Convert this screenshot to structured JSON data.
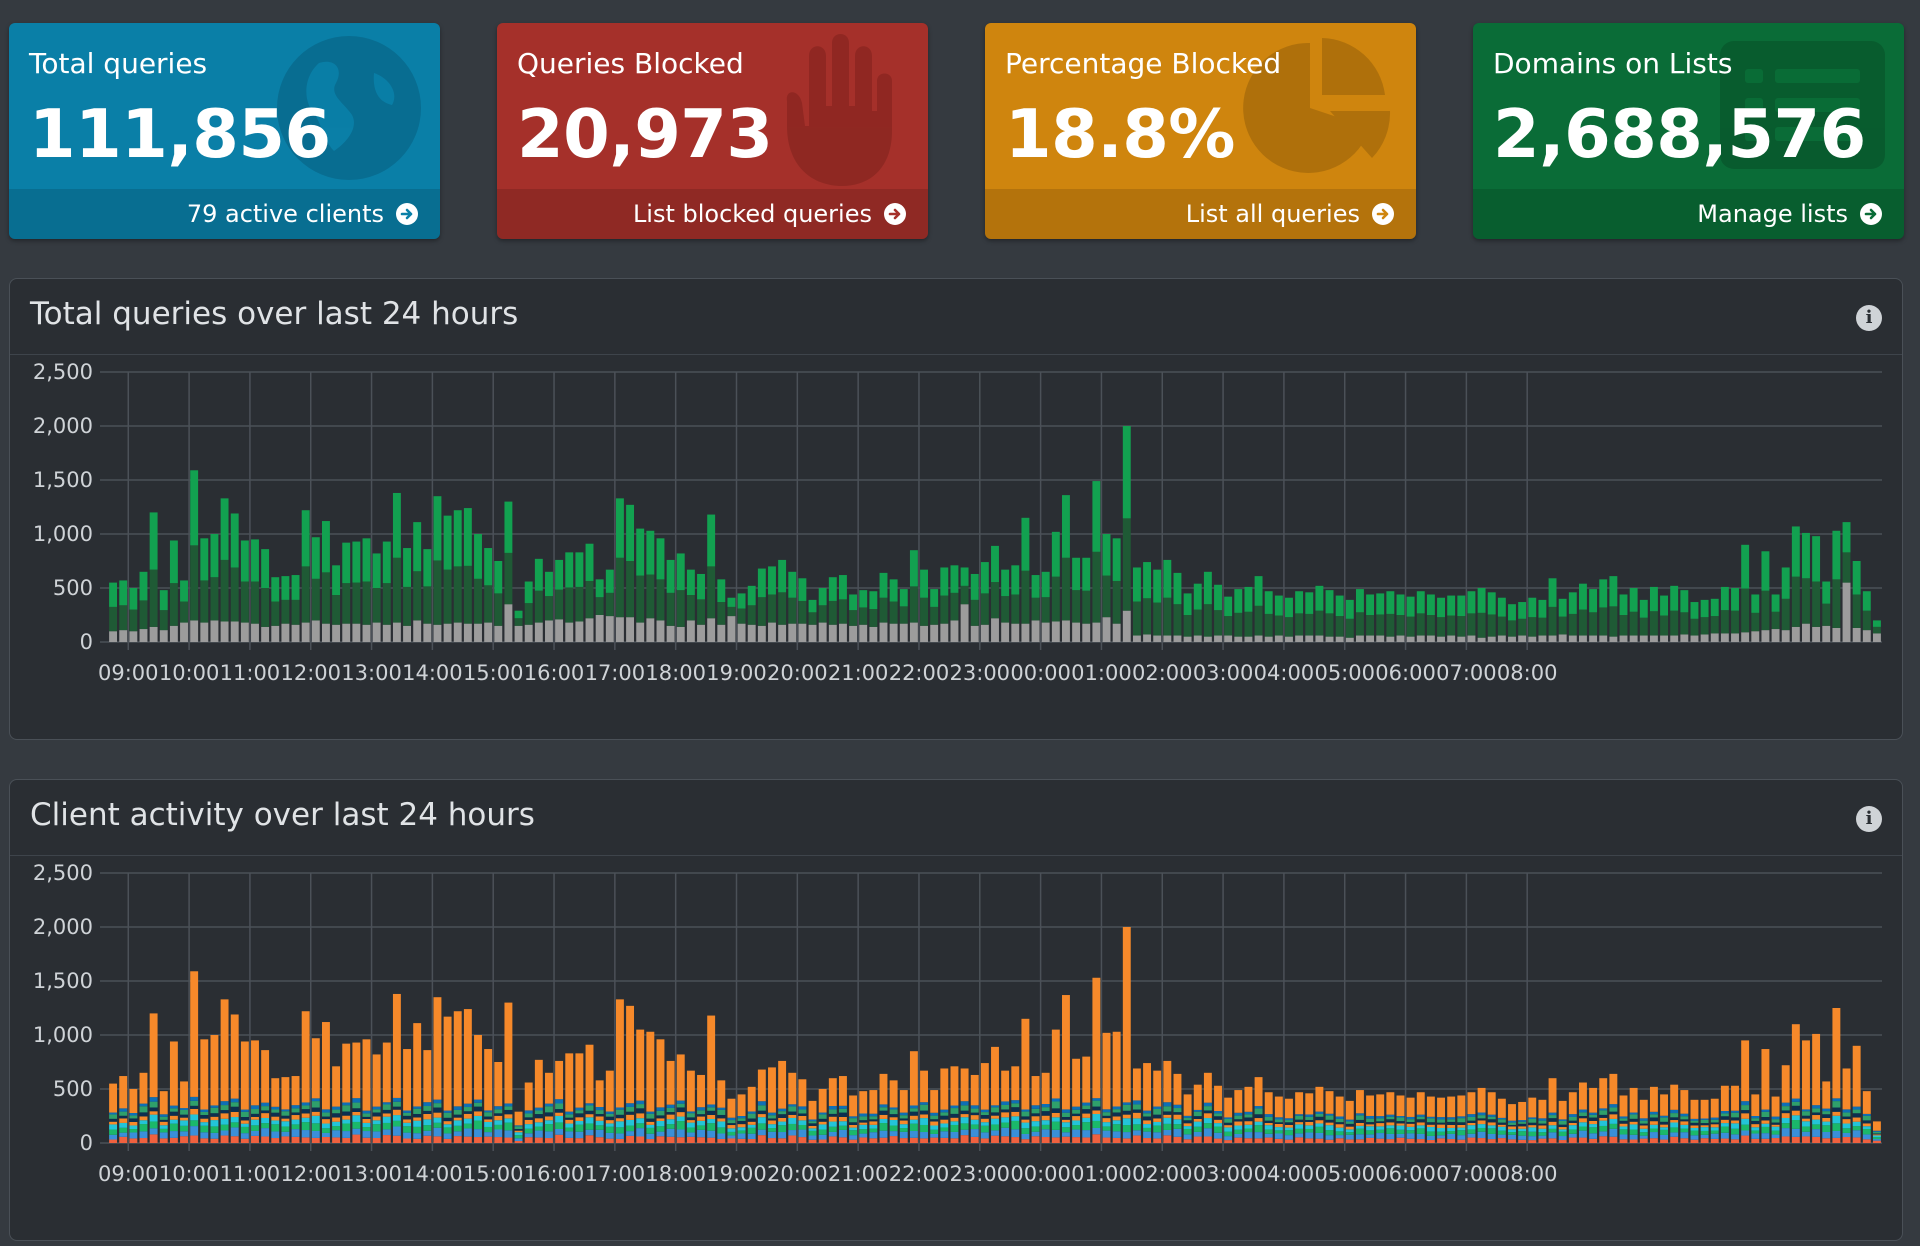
{
  "stats": [
    {
      "label": "Total queries",
      "value": "111,856",
      "footer": "79 active clients",
      "color": "#0a7fa7",
      "icon": "globe-icon"
    },
    {
      "label": "Queries Blocked",
      "value": "20,973",
      "footer": "List blocked queries",
      "color": "#a5302a",
      "icon": "hand-icon"
    },
    {
      "label": "Percentage Blocked",
      "value": "18.8%",
      "footer": "List all queries",
      "color": "#cf850e",
      "icon": "pie-chart-icon"
    },
    {
      "label": "Domains on Lists",
      "value": "2,688,576",
      "footer": "Manage lists",
      "color": "#0a6c37",
      "icon": "list-icon"
    }
  ],
  "panels": {
    "queries": {
      "title": "Total queries over last 24 hours"
    },
    "clients": {
      "title": "Client activity over last 24 hours"
    }
  },
  "colors": {
    "permitted_light": "#12a150",
    "permitted_dark": "#1f5a35",
    "blocked": "#9c9c9c",
    "client_palette": [
      "#f0613f",
      "#3a8fd9",
      "#1bb86a",
      "#23c4d9",
      "#f6892a",
      "#0d2f4f",
      "#2fa06b",
      "#0e6fb5",
      "#12e0a0"
    ]
  },
  "chart_data": [
    {
      "type": "bar",
      "name": "queries",
      "title": "Total queries over last 24 hours",
      "stacked": true,
      "ylim": [
        0,
        2500
      ],
      "yticks": [
        "0",
        "500",
        "1,000",
        "1,500",
        "2,000",
        "2,500"
      ],
      "xticks": [
        "09:00",
        "10:00",
        "11:00",
        "12:00",
        "13:00",
        "14:00",
        "15:00",
        "16:00",
        "17:00",
        "18:00",
        "19:00",
        "20:00",
        "21:00",
        "22:00",
        "23:00",
        "00:00",
        "01:00",
        "02:00",
        "03:00",
        "04:00",
        "05:00",
        "06:00",
        "07:00",
        "08:00"
      ],
      "x_start": "08:40",
      "interval_minutes": 10,
      "grid": true,
      "series": [
        {
          "key": "blocked",
          "values": [
            100,
            110,
            100,
            120,
            140,
            110,
            150,
            180,
            200,
            180,
            200,
            190,
            190,
            180,
            170,
            140,
            150,
            170,
            160,
            180,
            200,
            170,
            160,
            170,
            170,
            160,
            180,
            160,
            180,
            150,
            200,
            170,
            160,
            170,
            180,
            170,
            170,
            180,
            150,
            350,
            150,
            160,
            180,
            200,
            210,
            180,
            190,
            220,
            250,
            240,
            230,
            230,
            180,
            220,
            200,
            150,
            140,
            200,
            160,
            220,
            160,
            240,
            170,
            160,
            150,
            180,
            160,
            170,
            170,
            160,
            180,
            160,
            170,
            150,
            160,
            140,
            180,
            170,
            170,
            180,
            150,
            160,
            170,
            200,
            350,
            150,
            160,
            220,
            180,
            170,
            170,
            200,
            180,
            190,
            200,
            180,
            170,
            180,
            230,
            170,
            290,
            60,
            70,
            60,
            60,
            60,
            50,
            60,
            50,
            60,
            60,
            50,
            50,
            60,
            50,
            60,
            50,
            60,
            60,
            60,
            50,
            50,
            40,
            60,
            60,
            60,
            50,
            60,
            50,
            60,
            60,
            50,
            60,
            50,
            60,
            40,
            50,
            60,
            50,
            60,
            50,
            60,
            60,
            70,
            60,
            60,
            60,
            60,
            50,
            60,
            60,
            60,
            60,
            60,
            60,
            70,
            60,
            70,
            80,
            80,
            80,
            90,
            100,
            110,
            120,
            110,
            140,
            170,
            140,
            150,
            130,
            550,
            130,
            110,
            80
          ]
        },
        {
          "key": "permitted",
          "values": [
            450,
            460,
            400,
            530,
            1060,
            370,
            790,
            390,
            1390,
            780,
            800,
            1140,
            1000,
            760,
            780,
            720,
            450,
            440,
            460,
            1040,
            770,
            950,
            550,
            750,
            760,
            800,
            640,
            770,
            1200,
            720,
            910,
            690,
            1190,
            1000,
            1040,
            1070,
            830,
            690,
            600,
            950,
            140,
            400,
            590,
            450,
            550,
            650,
            640,
            690,
            330,
            430,
            1100,
            1040,
            870,
            810,
            760,
            610,
            680,
            470,
            470,
            960,
            420,
            170,
            280,
            360,
            530,
            520,
            600,
            480,
            420,
            230,
            320,
            440,
            450,
            290,
            320,
            330,
            460,
            410,
            320,
            670,
            520,
            330,
            520,
            510,
            340,
            480,
            580,
            670,
            490,
            540,
            980,
            420,
            470,
            830,
            1160,
            600,
            610,
            1310,
            770,
            790,
            1710,
            630,
            670,
            610,
            700,
            580,
            400,
            480,
            600,
            470,
            360,
            440,
            460,
            550,
            420,
            370,
            360,
            410,
            400,
            460,
            430,
            380,
            350,
            430,
            380,
            390,
            420,
            380,
            370,
            410,
            380,
            360,
            370,
            380,
            410,
            460,
            410,
            350,
            300,
            310,
            360,
            330,
            530,
            330,
            400,
            480,
            430,
            520,
            560,
            380,
            440,
            330,
            450,
            370,
            460,
            410,
            310,
            320,
            320,
            430,
            420,
            810,
            340,
            730,
            320,
            580,
            930,
            840,
            840,
            410,
            900,
            560,
            620,
            360,
            120
          ]
        }
      ]
    },
    {
      "type": "bar",
      "name": "clients",
      "title": "Client activity over last 24 hours",
      "stacked": true,
      "ylim": [
        0,
        2500
      ],
      "yticks": [
        "0",
        "500",
        "1,000",
        "1,500",
        "2,000",
        "2,500"
      ],
      "xticks": [
        "09:00",
        "10:00",
        "11:00",
        "12:00",
        "13:00",
        "14:00",
        "15:00",
        "16:00",
        "17:00",
        "18:00",
        "19:00",
        "20:00",
        "21:00",
        "22:00",
        "23:00",
        "00:00",
        "01:00",
        "02:00",
        "03:00",
        "04:00",
        "05:00",
        "06:00",
        "07:00",
        "08:00"
      ],
      "x_start": "08:40",
      "interval_minutes": 10,
      "grid": true,
      "totals": [
        550,
        620,
        500,
        650,
        1200,
        480,
        940,
        570,
        1590,
        960,
        1000,
        1330,
        1190,
        940,
        950,
        860,
        600,
        610,
        620,
        1220,
        970,
        1120,
        710,
        920,
        930,
        960,
        820,
        930,
        1380,
        870,
        1110,
        860,
        1350,
        1170,
        1220,
        1240,
        1000,
        870,
        750,
        1300,
        290,
        560,
        770,
        650,
        760,
        830,
        830,
        910,
        580,
        670,
        1330,
        1270,
        1050,
        1030,
        960,
        760,
        820,
        670,
        630,
        1180,
        580,
        410,
        450,
        520,
        680,
        700,
        760,
        650,
        590,
        390,
        500,
        600,
        620,
        440,
        480,
        490,
        640,
        580,
        490,
        850,
        670,
        490,
        690,
        710,
        690,
        630,
        740,
        890,
        670,
        710,
        1150,
        620,
        650,
        1050,
        1370,
        780,
        800,
        1530,
        1020,
        1030,
        2000,
        690,
        740,
        670,
        760,
        640,
        450,
        540,
        650,
        530,
        420,
        490,
        520,
        610,
        470,
        430,
        410,
        470,
        460,
        520,
        480,
        430,
        390,
        490,
        440,
        450,
        470,
        440,
        420,
        470,
        430,
        420,
        430,
        440,
        470,
        510,
        470,
        410,
        360,
        380,
        420,
        400,
        600,
        390,
        470,
        560,
        510,
        600,
        640,
        440,
        510,
        400,
        520,
        450,
        540,
        490,
        400,
        400,
        410,
        530,
        530,
        950,
        450,
        870,
        430,
        720,
        1100,
        950,
        1010,
        570,
        1250,
        690,
        900,
        480,
        200
      ]
    }
  ]
}
